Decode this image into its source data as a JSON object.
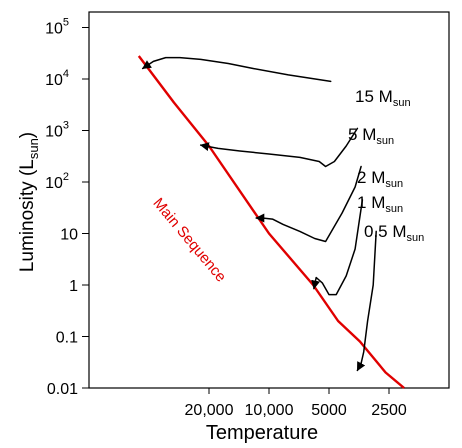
{
  "chart_data": {
    "type": "line",
    "title": "",
    "xlabel": "Temperature",
    "ylabel_main": "Luminosity (L",
    "ylabel_sub": "sun",
    "ylabel_close": ")",
    "x_scale": "log",
    "x_reversed": true,
    "y_scale": "log",
    "xlim": [
      80000,
      1250
    ],
    "ylim": [
      0.01,
      200000
    ],
    "grid": false,
    "x_ticks": [
      {
        "label": "20,000",
        "value": 20000
      },
      {
        "label": "10,000",
        "value": 10000
      },
      {
        "label": "5000",
        "value": 5000
      },
      {
        "label": "2500",
        "value": 2500
      }
    ],
    "y_ticks": [
      {
        "base": "10",
        "exp": "5",
        "value": 100000
      },
      {
        "base": "10",
        "exp": "4",
        "value": 10000
      },
      {
        "base": "10",
        "exp": "3",
        "value": 1000
      },
      {
        "base": "10",
        "exp": "2",
        "value": 100
      },
      {
        "base": "10",
        "exp": "",
        "value": 10
      },
      {
        "base": "1",
        "exp": "",
        "value": 1
      },
      {
        "base": "0.1",
        "exp": "",
        "value": 0.1
      },
      {
        "base": "0.01",
        "exp": "",
        "value": 0.01
      }
    ],
    "main_sequence": {
      "label": "Main Sequence",
      "color": "#e00000",
      "x": [
        45000,
        30000,
        20000,
        10000,
        6000,
        4500,
        3500,
        2600,
        2100
      ],
      "y": [
        28000,
        3500,
        500,
        10,
        1,
        0.2,
        0.08,
        0.02,
        0.01
      ]
    },
    "tracks": [
      {
        "mass": "15",
        "unit": "M",
        "sub": "sun",
        "x": [
          4900,
          8000,
          12000,
          16000,
          22000,
          28000,
          33000,
          38000,
          43000
        ],
        "y": [
          9000,
          12000,
          16000,
          20000,
          24000,
          26000,
          26000,
          22000,
          16000
        ]
      },
      {
        "mass": "5",
        "unit": "M",
        "sub": "sun",
        "x": [
          3600,
          4100,
          4700,
          5200,
          5600,
          7000,
          10000,
          14000,
          18000,
          22000
        ],
        "y": [
          1100,
          500,
          250,
          200,
          250,
          300,
          350,
          400,
          450,
          520
        ]
      },
      {
        "mass": "2",
        "unit": "M",
        "sub": "sun",
        "x": [
          3450,
          3700,
          4300,
          5200,
          5900,
          7000,
          8500,
          9600,
          10800,
          11600
        ],
        "y": [
          200,
          80,
          25,
          7,
          8,
          11,
          15,
          19,
          20,
          20
        ]
      },
      {
        "mass": "1",
        "unit": "M",
        "sub": "sun",
        "x": [
          3400,
          3700,
          4100,
          4600,
          5000,
          5400,
          5800,
          5950
        ],
        "y": [
          45,
          5,
          1.5,
          0.65,
          0.65,
          1.1,
          1.4,
          0.85
        ]
      },
      {
        "mass": "0.5",
        "unit": "M",
        "sub": "sun",
        "x": [
          2900,
          3000,
          3200,
          3350,
          3450,
          3600
        ],
        "y": [
          11,
          1,
          0.2,
          0.05,
          0.03,
          0.022
        ]
      }
    ]
  }
}
